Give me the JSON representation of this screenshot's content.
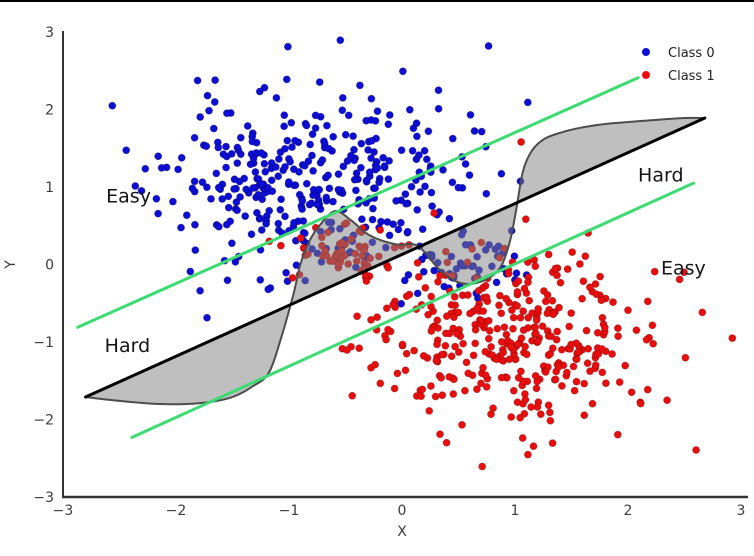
{
  "chart_data": {
    "type": "scatter",
    "title": "",
    "xlabel": "X",
    "ylabel": "Y",
    "xlim": [
      -3,
      3
    ],
    "ylim": [
      -3,
      3
    ],
    "xticks": [
      -3,
      -2,
      -1,
      0,
      1,
      2,
      3
    ],
    "yticks": [
      -3,
      -2,
      -1,
      0,
      1,
      2,
      3
    ],
    "grid": false,
    "legend": {
      "position": "upper-right",
      "frame": false,
      "entries": [
        {
          "label": "Class 0",
          "color": "#0d0dd6"
        },
        {
          "label": "Class 1",
          "color": "#e90e0e"
        }
      ]
    },
    "series": [
      {
        "name": "Class 0",
        "color": "#0d0dd6",
        "edge_color": "rgba(0,0,90,0.45)",
        "marker_radius": 3.5,
        "clusters": [
          {
            "center": [
              -0.8,
              1.02
            ],
            "std": [
              0.66,
              0.6
            ],
            "n": 380,
            "seed": 11
          },
          {
            "center": [
              0.55,
              -0.02
            ],
            "std": [
              0.24,
              0.17
            ],
            "n": 45,
            "seed": 12
          }
        ]
      },
      {
        "name": "Class 1",
        "color": "#e90e0e",
        "edge_color": "rgba(120,0,0,0.45)",
        "marker_radius": 3.5,
        "clusters": [
          {
            "center": [
              0.97,
              -0.92
            ],
            "std": [
              0.66,
              0.6
            ],
            "n": 380,
            "seed": 21
          },
          {
            "center": [
              -0.52,
              0.18
            ],
            "std": [
              0.21,
              0.17
            ],
            "n": 55,
            "seed": 22
          }
        ]
      }
    ],
    "boundaries": {
      "linear": {
        "color": "#000000",
        "width": 3,
        "from": [
          -2.8,
          -1.71
        ],
        "to": [
          2.68,
          1.89
        ]
      },
      "margins": [
        {
          "color": "#3cdc73",
          "width": 3,
          "from": [
            -2.87,
            -0.81
          ],
          "to": [
            2.09,
            2.41
          ]
        },
        {
          "color": "#3cdc73",
          "width": 3,
          "from": [
            -2.39,
            -2.23
          ],
          "to": [
            2.58,
            1.05
          ]
        }
      ],
      "nonlinear": {
        "color": "#4d4d4d",
        "width": 2,
        "points": [
          [
            -2.8,
            -1.71
          ],
          [
            -2.5,
            -1.76
          ],
          [
            -2.15,
            -1.8
          ],
          [
            -1.8,
            -1.79
          ],
          [
            -1.52,
            -1.72
          ],
          [
            -1.33,
            -1.58
          ],
          [
            -1.18,
            -1.4
          ],
          [
            -1.07,
            -0.95
          ],
          [
            -0.96,
            -0.38
          ],
          [
            -0.9,
            0.0
          ],
          [
            -0.82,
            0.3
          ],
          [
            -0.72,
            0.52
          ],
          [
            -0.59,
            0.69
          ],
          [
            -0.45,
            0.57
          ],
          [
            -0.28,
            0.37
          ],
          [
            -0.05,
            0.26
          ],
          [
            0.14,
            0.24
          ],
          [
            0.34,
            -0.08
          ],
          [
            0.52,
            -0.24
          ],
          [
            0.7,
            -0.22
          ],
          [
            0.86,
            -0.06
          ],
          [
            0.95,
            0.27
          ],
          [
            1.01,
            0.7
          ],
          [
            1.07,
            1.2
          ],
          [
            1.15,
            1.47
          ],
          [
            1.26,
            1.62
          ],
          [
            1.4,
            1.7
          ],
          [
            1.6,
            1.77
          ],
          [
            1.85,
            1.82
          ],
          [
            2.2,
            1.86
          ],
          [
            2.5,
            1.89
          ],
          [
            2.68,
            1.89
          ]
        ]
      },
      "region_fill": "rgba(128,128,128,0.5)"
    },
    "annotations": [
      {
        "text": "Easy",
        "x": -2.42,
        "y": 0.88
      },
      {
        "text": "Hard",
        "x": -2.43,
        "y": -1.05
      },
      {
        "text": "Hard",
        "x": 2.29,
        "y": 1.15
      },
      {
        "text": "Easy",
        "x": 2.49,
        "y": -0.05
      }
    ],
    "colors": {
      "spine": "#333333",
      "tick_label": "#3c3c3c",
      "annotation": "#141414",
      "legend_text": "#1d1d1d",
      "top_border": "#000000"
    }
  }
}
